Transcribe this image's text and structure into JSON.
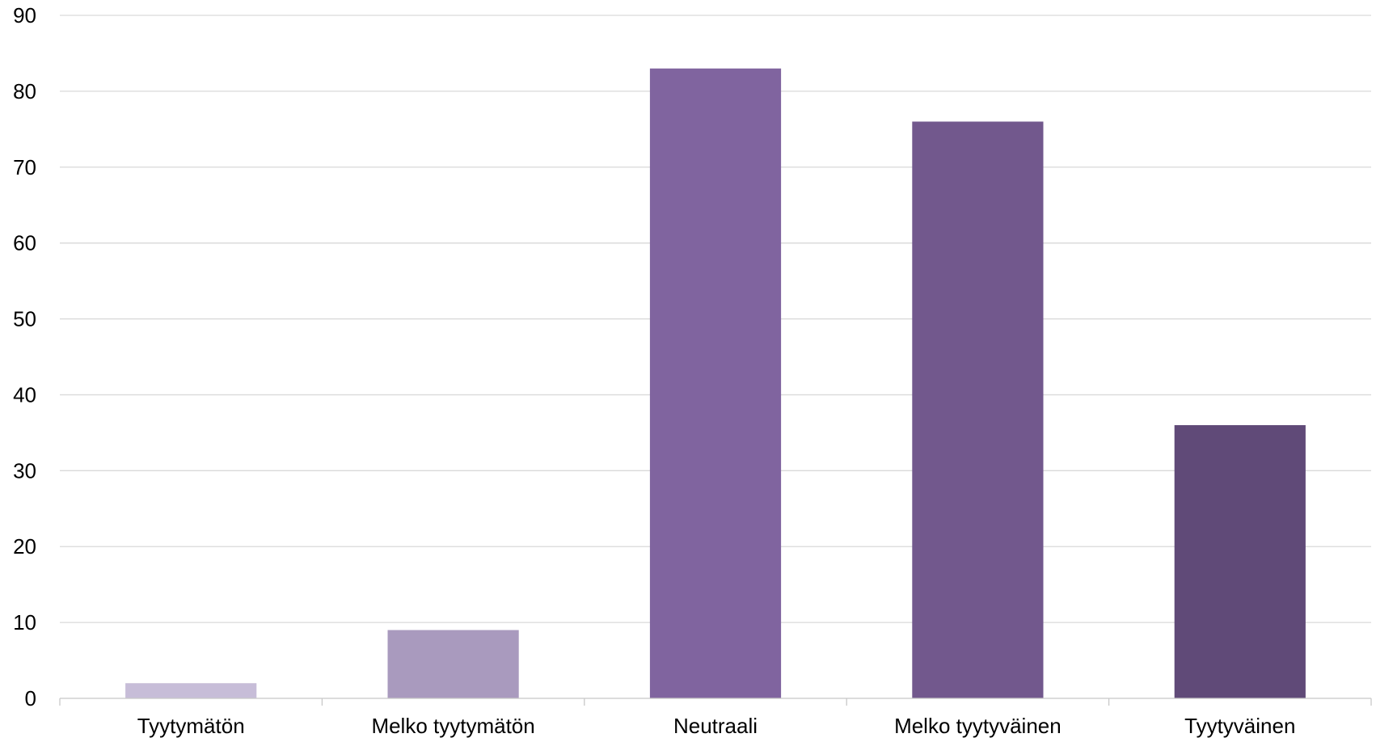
{
  "chart_data": {
    "type": "bar",
    "categories": [
      "Tyytymätön",
      "Melko tyytymätön",
      "Neutraali",
      "Melko tyytyväinen",
      "Tyytyväinen"
    ],
    "values": [
      2,
      9,
      83,
      76,
      36
    ],
    "bar_colors": [
      "#c7bdd8",
      "#a99abe",
      "#80649f",
      "#72588d",
      "#604a78"
    ],
    "ylim": [
      0,
      90
    ],
    "yticks": [
      0,
      10,
      20,
      30,
      40,
      50,
      60,
      70,
      80,
      90
    ],
    "grid": true,
    "legend": "none",
    "title": "",
    "xlabel": "",
    "ylabel": ""
  }
}
